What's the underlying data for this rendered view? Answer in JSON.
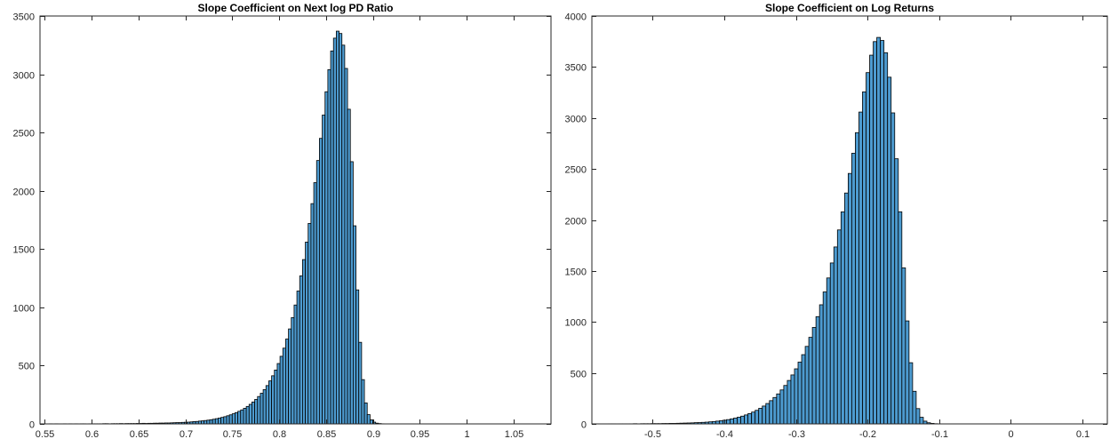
{
  "chart_data": [
    {
      "type": "bar",
      "title": "Slope Coefficient on Next log PD Ratio",
      "xlabel": "",
      "ylabel": "",
      "xlim": [
        0.545,
        1.09
      ],
      "ylim": [
        0,
        3500
      ],
      "xticks": [
        0.55,
        0.6,
        0.65,
        0.7,
        0.75,
        0.8,
        0.85,
        0.9,
        0.95,
        1,
        1.05
      ],
      "xtick_labels": [
        "0.55",
        "0.6",
        "0.65",
        "0.7",
        "0.75",
        "0.8",
        "0.85",
        "0.9",
        "0.95",
        "1",
        "1.05"
      ],
      "yticks": [
        0,
        500,
        1000,
        1500,
        2000,
        2500,
        3000,
        3500
      ],
      "ytick_labels": [
        "0",
        "500",
        "1000",
        "1500",
        "2000",
        "2500",
        "3000",
        "3500"
      ],
      "bar_color": "#4d9bd0",
      "edge_color": "#000000",
      "box": true,
      "grid": false,
      "bins": {
        "start": 0.555,
        "width": 0.003,
        "counts": [
          1,
          0,
          1,
          0,
          0,
          1,
          0,
          1,
          0,
          1,
          0,
          1,
          1,
          0,
          1,
          1,
          1,
          1,
          1,
          2,
          2,
          1,
          2,
          2,
          2,
          3,
          2,
          3,
          3,
          3,
          3,
          4,
          4,
          5,
          4,
          5,
          5,
          6,
          6,
          7,
          7,
          8,
          8,
          9,
          10,
          11,
          11,
          13,
          14,
          15,
          17,
          20,
          21,
          24,
          26,
          29,
          32,
          36,
          40,
          45,
          50,
          56,
          62,
          70,
          78,
          87,
          97,
          108,
          120,
          134,
          150,
          168,
          188,
          210,
          235,
          263,
          294,
          329,
          369,
          413,
          462,
          518,
          580,
          650,
          728,
          815,
          912,
          1020,
          1140,
          1270,
          1410,
          1560,
          1720,
          1890,
          2070,
          2260,
          2450,
          2650,
          2850,
          3040,
          3200,
          3310,
          3370,
          3350,
          3250,
          3050,
          2700,
          2250,
          1700,
          1150,
          700,
          380,
          180,
          80,
          35,
          15,
          6,
          3,
          1
        ]
      }
    },
    {
      "type": "bar",
      "title": "Slope Coefficient on Log Returns",
      "xlabel": "",
      "ylabel": "",
      "xlim": [
        -0.585,
        0.135
      ],
      "ylim": [
        0,
        4000
      ],
      "xticks": [
        -0.5,
        -0.4,
        -0.3,
        -0.2,
        -0.1,
        0,
        0.1
      ],
      "xtick_labels": [
        "-0.5",
        "-0.4",
        "-0.3",
        "-0.2",
        "-0.1",
        "0",
        "0.1"
      ],
      "yticks": [
        0,
        500,
        1000,
        1500,
        2000,
        2500,
        3000,
        3500,
        4000
      ],
      "ytick_labels": [
        "0",
        "500",
        "1000",
        "1500",
        "2000",
        "2500",
        "3000",
        "3500",
        "4000"
      ],
      "bar_color": "#4d9bd0",
      "edge_color": "#000000",
      "box": true,
      "grid": false,
      "bins": {
        "start": -0.562,
        "width": 0.005,
        "counts": [
          1,
          1,
          0,
          1,
          1,
          1,
          1,
          2,
          1,
          2,
          2,
          2,
          3,
          3,
          3,
          4,
          4,
          5,
          5,
          6,
          7,
          8,
          9,
          10,
          12,
          13,
          15,
          17,
          20,
          23,
          27,
          31,
          36,
          42,
          49,
          57,
          66,
          76,
          88,
          101,
          116,
          133,
          153,
          175,
          200,
          228,
          259,
          294,
          333,
          377,
          426,
          480,
          540,
          606,
          679,
          760,
          849,
          946,
          1052,
          1168,
          1294,
          1431,
          1578,
          1735,
          1902,
          2079,
          2264,
          2456,
          2654,
          2856,
          3058,
          3256,
          3445,
          3616,
          3749,
          3790,
          3760,
          3640,
          3400,
          3050,
          2600,
          2080,
          1530,
          1010,
          600,
          320,
          150,
          65,
          27,
          11,
          5,
          2,
          1
        ]
      }
    }
  ]
}
